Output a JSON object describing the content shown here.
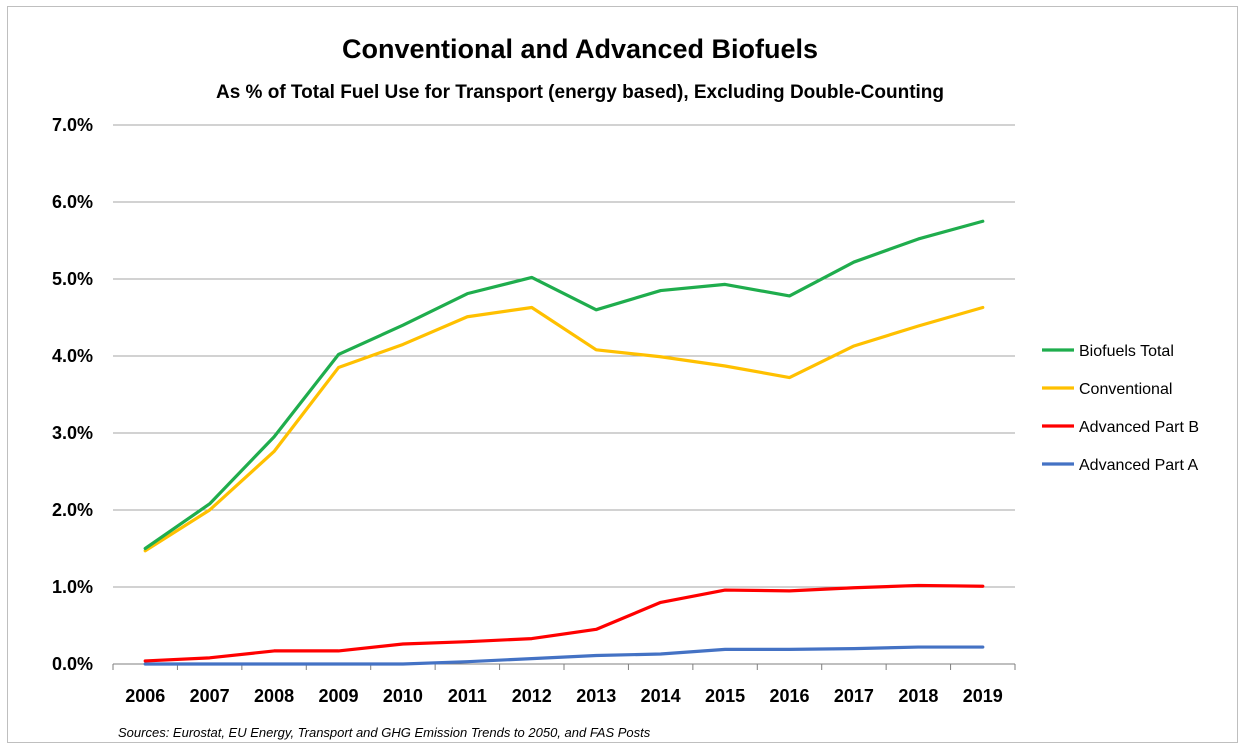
{
  "chart_data": {
    "type": "line",
    "title": "Conventional and Advanced Biofuels",
    "subtitle": "As % of Total Fuel Use for Transport (energy based), Excluding Double-Counting",
    "xlabel": "",
    "ylabel": "",
    "ylim": [
      0,
      7
    ],
    "y_ticks": [
      "0.0%",
      "1.0%",
      "2.0%",
      "3.0%",
      "4.0%",
      "5.0%",
      "6.0%",
      "7.0%"
    ],
    "y_tick_values": [
      0,
      1,
      2,
      3,
      4,
      5,
      6,
      7
    ],
    "categories": [
      "2006",
      "2007",
      "2008",
      "2009",
      "2010",
      "2011",
      "2012",
      "2013",
      "2014",
      "2015",
      "2016",
      "2017",
      "2018",
      "2019"
    ],
    "grid": true,
    "legend_position": "right",
    "series": [
      {
        "name": "Biofuels Total",
        "color": "#1fad4d",
        "values": [
          1.5,
          2.08,
          2.95,
          4.02,
          4.4,
          4.81,
          5.02,
          4.6,
          4.85,
          4.93,
          4.78,
          5.22,
          5.52,
          5.75
        ]
      },
      {
        "name": "Conventional",
        "color": "#ffc000",
        "values": [
          1.47,
          2.0,
          2.76,
          3.85,
          4.15,
          4.51,
          4.63,
          4.08,
          3.99,
          3.87,
          3.72,
          4.13,
          4.39,
          4.63
        ]
      },
      {
        "name": "Advanced Part B",
        "color": "#ff0000",
        "values": [
          0.04,
          0.08,
          0.17,
          0.17,
          0.26,
          0.29,
          0.33,
          0.45,
          0.8,
          0.96,
          0.95,
          0.99,
          1.02,
          1.01
        ]
      },
      {
        "name": "Advanced Part A",
        "color": "#4472c4",
        "values": [
          0.0,
          0.0,
          0.0,
          0.0,
          0.0,
          0.03,
          0.07,
          0.11,
          0.13,
          0.19,
          0.19,
          0.2,
          0.22,
          0.22
        ]
      }
    ],
    "source_note": "Sources: Eurostat, EU Energy, Transport and GHG Emission Trends to 2050, and FAS Posts"
  }
}
